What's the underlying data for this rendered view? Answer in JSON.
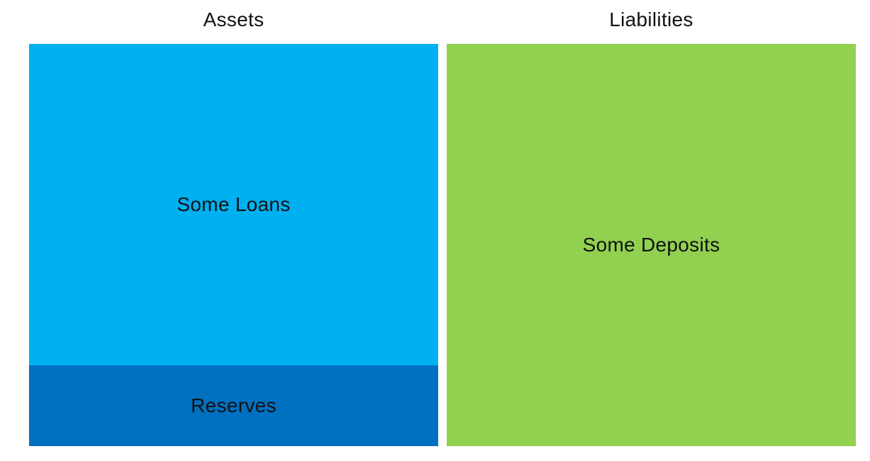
{
  "assets": {
    "title": "Assets",
    "blocks": [
      {
        "label": "Some Loans",
        "color": "#00B0F0"
      },
      {
        "label": "Reserves",
        "color": "#0070C0"
      }
    ]
  },
  "liabilities": {
    "title": "Liabilities",
    "blocks": [
      {
        "label": "Some Deposits",
        "color": "#92D050"
      }
    ]
  }
}
